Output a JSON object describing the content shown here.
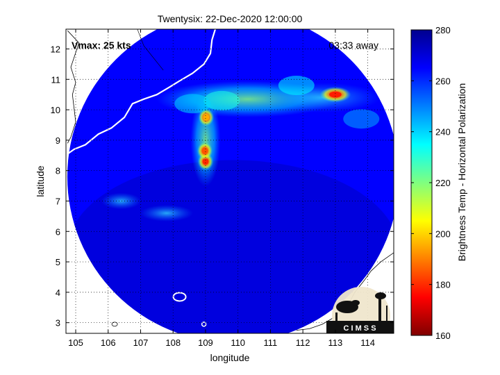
{
  "chart_data": {
    "type": "heatmap",
    "title": "Twentysix: 22-Dec-2020 12:00:00",
    "xlabel": "longitude",
    "ylabel": "latitude",
    "xlim": [
      104.7,
      114.8
    ],
    "ylim": [
      2.65,
      12.65
    ],
    "xticks": [
      105,
      106,
      107,
      108,
      109,
      110,
      111,
      112,
      113,
      114
    ],
    "yticks": [
      3,
      4,
      5,
      6,
      7,
      8,
      9,
      10,
      11,
      12
    ],
    "grid": true,
    "grid_style": "dotted",
    "annotations": {
      "vmax": "Vmax: 25 kts",
      "time_away": "03:33 away"
    },
    "colorbar": {
      "label": "Brightness Temp - Horizontal Polarization",
      "range": [
        160,
        280
      ],
      "ticks": [
        160,
        180,
        200,
        220,
        240,
        260,
        280
      ],
      "colormap": "jet"
    },
    "swath": {
      "center": [
        109.85,
        7.8
      ],
      "radius_deg": 5.3,
      "background_tb": 265
    },
    "features": [
      {
        "lon": 109.0,
        "lat": 8.3,
        "tb": 180
      },
      {
        "lon": 108.98,
        "lat": 8.65,
        "tb": 185
      },
      {
        "lon": 109.02,
        "lat": 9.75,
        "tb": 195
      },
      {
        "lon": 113.0,
        "lat": 10.5,
        "tb": 178
      },
      {
        "lon": 109.5,
        "lat": 10.3,
        "tb": 232
      },
      {
        "lon": 111.8,
        "lat": 10.8,
        "tb": 236
      },
      {
        "lon": 108.6,
        "lat": 10.2,
        "tb": 240
      },
      {
        "lon": 113.8,
        "lat": 9.7,
        "tb": 245
      }
    ],
    "logo": {
      "text": "C I M S S",
      "name": "cimss-logo"
    }
  }
}
